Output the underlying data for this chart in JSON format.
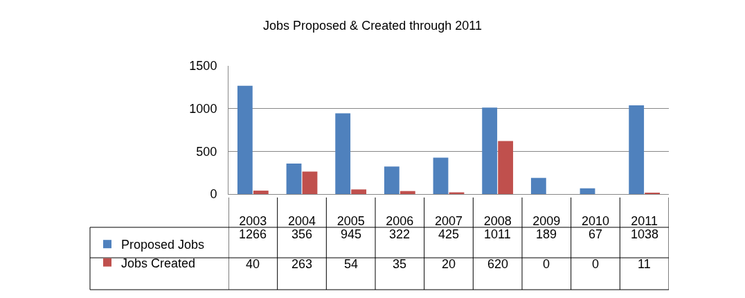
{
  "chart_data": {
    "type": "bar",
    "title": "Jobs Proposed & Created through 2011",
    "categories": [
      "2003",
      "2004",
      "2005",
      "2006",
      "2007",
      "2008",
      "2009",
      "2010",
      "2011"
    ],
    "series": [
      {
        "name": "Proposed Jobs",
        "color": "#4f81bd",
        "values": [
          1266,
          356,
          945,
          322,
          425,
          1011,
          189,
          67,
          1038
        ]
      },
      {
        "name": "Jobs Created",
        "color": "#c0504d",
        "values": [
          40,
          263,
          54,
          35,
          20,
          620,
          0,
          0,
          11
        ]
      }
    ],
    "ylim": [
      0,
      1500
    ],
    "yticks": [
      0,
      500,
      1000,
      1500
    ],
    "grid": "y",
    "data_labels": true,
    "legend": "bottom left"
  }
}
